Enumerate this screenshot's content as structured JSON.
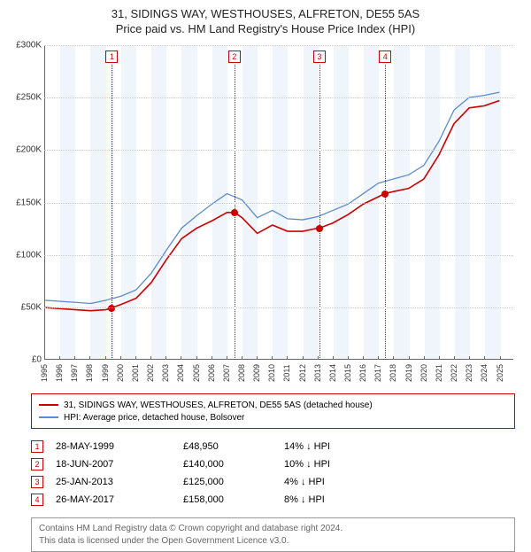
{
  "title_line1": "31, SIDINGS WAY, WESTHOUSES, ALFRETON, DE55 5AS",
  "title_line2": "Price paid vs. HM Land Registry's House Price Index (HPI)",
  "chart": {
    "type": "line",
    "background_color": "#ffffff",
    "band_color": "#f0f4fb",
    "grid_color": "#cccccc",
    "axis_color": "#666666",
    "marker_border": "#cc0000",
    "xlim": [
      1995,
      2025.9
    ],
    "ylim": [
      0,
      300000
    ],
    "ytick_step": 50000,
    "yticks": [
      "£0",
      "£50K",
      "£100K",
      "£150K",
      "£200K",
      "£250K",
      "£300K"
    ],
    "xticks": [
      1995,
      1996,
      1997,
      1998,
      1999,
      2000,
      2001,
      2002,
      2003,
      2004,
      2005,
      2006,
      2007,
      2008,
      2009,
      2010,
      2011,
      2012,
      2013,
      2014,
      2015,
      2016,
      2017,
      2018,
      2019,
      2020,
      2021,
      2022,
      2023,
      2024,
      2025
    ],
    "series": [
      {
        "name": "price_paid",
        "label": "31, SIDINGS WAY, WESTHOUSES, ALFRETON, DE55 5AS (detached house)",
        "color": "#cc0000",
        "line_width": 1.6,
        "data": [
          [
            1995,
            49000
          ],
          [
            1996,
            48000
          ],
          [
            1997,
            47000
          ],
          [
            1998,
            46000
          ],
          [
            1999,
            47000
          ],
          [
            1999.4,
            48950
          ],
          [
            2000,
            52000
          ],
          [
            2001,
            58000
          ],
          [
            2002,
            73000
          ],
          [
            2003,
            95000
          ],
          [
            2004,
            115000
          ],
          [
            2005,
            125000
          ],
          [
            2006,
            132000
          ],
          [
            2007,
            140000
          ],
          [
            2007.5,
            140000
          ],
          [
            2008,
            135000
          ],
          [
            2009,
            120000
          ],
          [
            2010,
            128000
          ],
          [
            2011,
            122000
          ],
          [
            2012,
            122000
          ],
          [
            2013,
            125000
          ],
          [
            2013.1,
            125000
          ],
          [
            2014,
            130000
          ],
          [
            2015,
            138000
          ],
          [
            2016,
            148000
          ],
          [
            2017,
            155000
          ],
          [
            2017.4,
            158000
          ],
          [
            2018,
            160000
          ],
          [
            2019,
            163000
          ],
          [
            2020,
            172000
          ],
          [
            2021,
            195000
          ],
          [
            2022,
            225000
          ],
          [
            2023,
            240000
          ],
          [
            2024,
            242000
          ],
          [
            2025,
            247000
          ]
        ]
      },
      {
        "name": "hpi",
        "label": "HPI: Average price, detached house, Bolsover",
        "color": "#5b8cc8",
        "line_width": 1.3,
        "data": [
          [
            1995,
            56000
          ],
          [
            1996,
            55000
          ],
          [
            1997,
            54000
          ],
          [
            1998,
            53000
          ],
          [
            1999,
            56000
          ],
          [
            2000,
            60000
          ],
          [
            2001,
            66000
          ],
          [
            2002,
            82000
          ],
          [
            2003,
            104000
          ],
          [
            2004,
            125000
          ],
          [
            2005,
            137000
          ],
          [
            2006,
            148000
          ],
          [
            2007,
            158000
          ],
          [
            2008,
            152000
          ],
          [
            2009,
            135000
          ],
          [
            2010,
            142000
          ],
          [
            2011,
            134000
          ],
          [
            2012,
            133000
          ],
          [
            2013,
            136000
          ],
          [
            2014,
            142000
          ],
          [
            2015,
            148000
          ],
          [
            2016,
            158000
          ],
          [
            2017,
            168000
          ],
          [
            2018,
            172000
          ],
          [
            2019,
            176000
          ],
          [
            2020,
            185000
          ],
          [
            2021,
            208000
          ],
          [
            2022,
            238000
          ],
          [
            2023,
            250000
          ],
          [
            2024,
            252000
          ],
          [
            2025,
            255000
          ]
        ]
      }
    ],
    "sale_markers": [
      {
        "n": "1",
        "year": 1999.4,
        "price": 48950
      },
      {
        "n": "2",
        "year": 2007.46,
        "price": 140000
      },
      {
        "n": "3",
        "year": 2013.07,
        "price": 125000
      },
      {
        "n": "4",
        "year": 2017.4,
        "price": 158000
      }
    ]
  },
  "legend": {
    "items": [
      {
        "color": "#cc0000",
        "label": "31, SIDINGS WAY, WESTHOUSES, ALFRETON, DE55 5AS (detached house)"
      },
      {
        "color": "#5b8cc8",
        "label": "HPI: Average price, detached house, Bolsover"
      }
    ]
  },
  "sales_table": [
    {
      "n": "1",
      "date": "28-MAY-1999",
      "price": "£48,950",
      "pct": "14% ↓ HPI"
    },
    {
      "n": "2",
      "date": "18-JUN-2007",
      "price": "£140,000",
      "pct": "10% ↓ HPI"
    },
    {
      "n": "3",
      "date": "25-JAN-2013",
      "price": "£125,000",
      "pct": "4% ↓ HPI"
    },
    {
      "n": "4",
      "date": "26-MAY-2017",
      "price": "£158,000",
      "pct": "8% ↓ HPI"
    }
  ],
  "footer_line1": "Contains HM Land Registry data © Crown copyright and database right 2024.",
  "footer_line2": "This data is licensed under the Open Government Licence v3.0."
}
